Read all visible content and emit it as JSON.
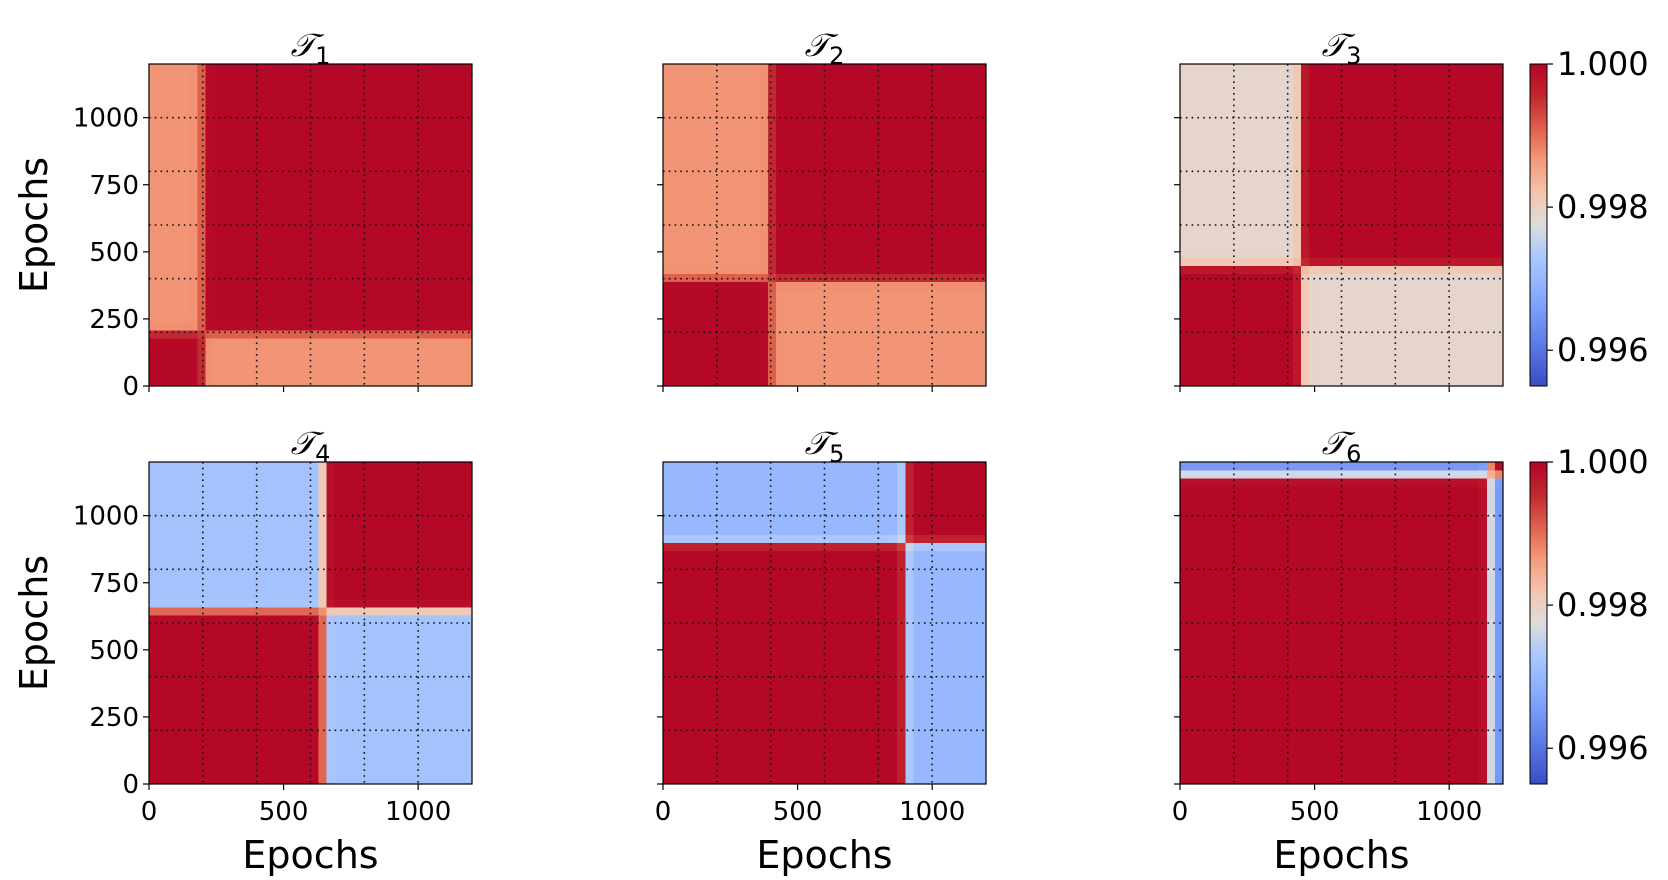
{
  "colors": {
    "cmap": "coolwarm",
    "low": "#3b4cc0",
    "mid": "#dddddd",
    "high": "#b40426",
    "grid": "#000000"
  },
  "chart_data": [
    {
      "type": "heatmap",
      "title": "𝒯",
      "subscript": "1",
      "xlabel": "",
      "ylabel": "Epochs",
      "xlim": [
        0,
        1200
      ],
      "ylim": [
        0,
        1200
      ],
      "x_ticks": [
        0,
        500,
        1000
      ],
      "y_ticks": [
        0,
        250,
        500,
        750,
        1000
      ],
      "grid": "dotted, every 200 epochs",
      "task_end": 200,
      "values_summary": "Diagonal block after epoch 200 ~1.000; strips x<200 and y<200 ~0.9987"
    },
    {
      "type": "heatmap",
      "title": "𝒯",
      "subscript": "2",
      "xlabel": "",
      "ylabel": "",
      "xlim": [
        0,
        1200
      ],
      "ylim": [
        0,
        1200
      ],
      "x_ticks": [
        0,
        500,
        1000
      ],
      "y_ticks": [
        0,
        250,
        500,
        750,
        1000
      ],
      "grid": "dotted, every 200 epochs",
      "task_end": 400,
      "values_summary": "Blocks [0,200] and [400,1200] ~1.000; cross blocks ~0.9987"
    },
    {
      "type": "heatmap",
      "title": "𝒯",
      "subscript": "3",
      "xlabel": "",
      "ylabel": "",
      "xlim": [
        0,
        1200
      ],
      "ylim": [
        0,
        1200
      ],
      "x_ticks": [
        0,
        500,
        1000
      ],
      "y_ticks": [
        0,
        250,
        500,
        750,
        1000
      ],
      "grid": "dotted, every 200 epochs",
      "task_end": 600,
      "values_summary": "Blocks [0,400] and [450,1200] ~1.000; cross blocks ~0.9979"
    },
    {
      "type": "heatmap",
      "title": "𝒯",
      "subscript": "4",
      "xlabel": "Epochs",
      "ylabel": "Epochs",
      "xlim": [
        0,
        1200
      ],
      "ylim": [
        0,
        1200
      ],
      "x_ticks": [
        0,
        500,
        1000
      ],
      "y_ticks": [
        0,
        250,
        500,
        750,
        1000
      ],
      "grid": "dotted, every 200 epochs",
      "task_end": 800,
      "values_summary": "Blocks [0,650] and [650,1200] ~1.000; cross blocks ~0.9972"
    },
    {
      "type": "heatmap",
      "title": "𝒯",
      "subscript": "5",
      "xlabel": "Epochs",
      "ylabel": "",
      "xlim": [
        0,
        1200
      ],
      "ylim": [
        0,
        1200
      ],
      "x_ticks": [
        0,
        500,
        1000
      ],
      "y_ticks": [
        0,
        250,
        500,
        750,
        1000
      ],
      "grid": "dotted, every 200 epochs",
      "task_end": 1000,
      "values_summary": "Blocks [0,900] and [900,1200] ~1.000; cross blocks ~0.9970"
    },
    {
      "type": "heatmap",
      "title": "𝒯",
      "subscript": "6",
      "xlabel": "Epochs",
      "ylabel": "",
      "xlim": [
        0,
        1200
      ],
      "ylim": [
        0,
        1200
      ],
      "x_ticks": [
        0,
        500,
        1000
      ],
      "y_ticks": [
        0,
        250,
        500,
        750,
        1000
      ],
      "grid": "dotted, every 200 epochs",
      "task_end": 1200,
      "values_summary": "Blocks [0,1150] and [1150,1200] ~1.000; cross blocks ~0.9965"
    }
  ],
  "colorbars": [
    {
      "vmin": 0.9955,
      "vmax": 1.0,
      "ticks": [
        0.996,
        0.998,
        1.0
      ],
      "tick_labels": [
        "0.996",
        "0.998",
        "1.000"
      ]
    },
    {
      "vmin": 0.9955,
      "vmax": 1.0,
      "ticks": [
        0.996,
        0.998,
        1.0
      ],
      "tick_labels": [
        "0.996",
        "0.998",
        "1.000"
      ]
    }
  ],
  "model": {
    "boundaries": [
      200,
      400,
      450,
      650,
      900,
      1150
    ],
    "cross_values": [
      0.9987,
      0.9987,
      0.9979,
      0.9972,
      0.997,
      0.9965
    ],
    "transition_width": 28
  }
}
